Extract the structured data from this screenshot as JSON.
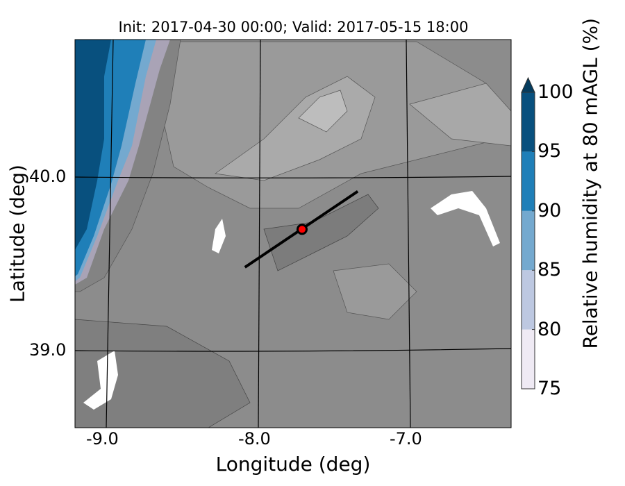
{
  "title": "Init: 2017-04-30 00:00; Valid: 2017-05-15 18:00",
  "xlabel": "Longitude (deg)",
  "ylabel": "Latitude (deg)",
  "x_ticks": [
    "-9.0",
    "-8.0",
    "-7.0"
  ],
  "y_ticks": [
    "40.0",
    "39.0"
  ],
  "colorbar": {
    "label": "Relative humidity at 80 mAGL (%)",
    "ticks": [
      "75",
      "80",
      "85",
      "90",
      "95",
      "100"
    ],
    "levels": [
      75,
      80,
      85,
      90,
      95,
      100
    ],
    "colors": [
      "#efeaf4",
      "#bdc8e1",
      "#74a9cf",
      "#1f7fb8",
      "#08507e"
    ],
    "extend_color": "#053c5e"
  },
  "chart_data": {
    "type": "heatmap",
    "title": "Init: 2017-04-30 00:00; Valid: 2017-05-15 18:00",
    "xlabel": "Longitude (deg)",
    "ylabel": "Latitude (deg)",
    "xlim": [
      -9.25,
      -6.35
    ],
    "ylim": [
      38.55,
      40.8
    ],
    "variable": "Relative humidity at 80 mAGL (%)",
    "clim": [
      75,
      100
    ],
    "transect": {
      "start": [
        -8.12,
        39.48
      ],
      "end": [
        -7.37,
        39.92
      ]
    },
    "marker": {
      "lon": -7.74,
      "lat": 39.7,
      "color": "#ff0000"
    },
    "background": "terrain (grayscale)"
  }
}
